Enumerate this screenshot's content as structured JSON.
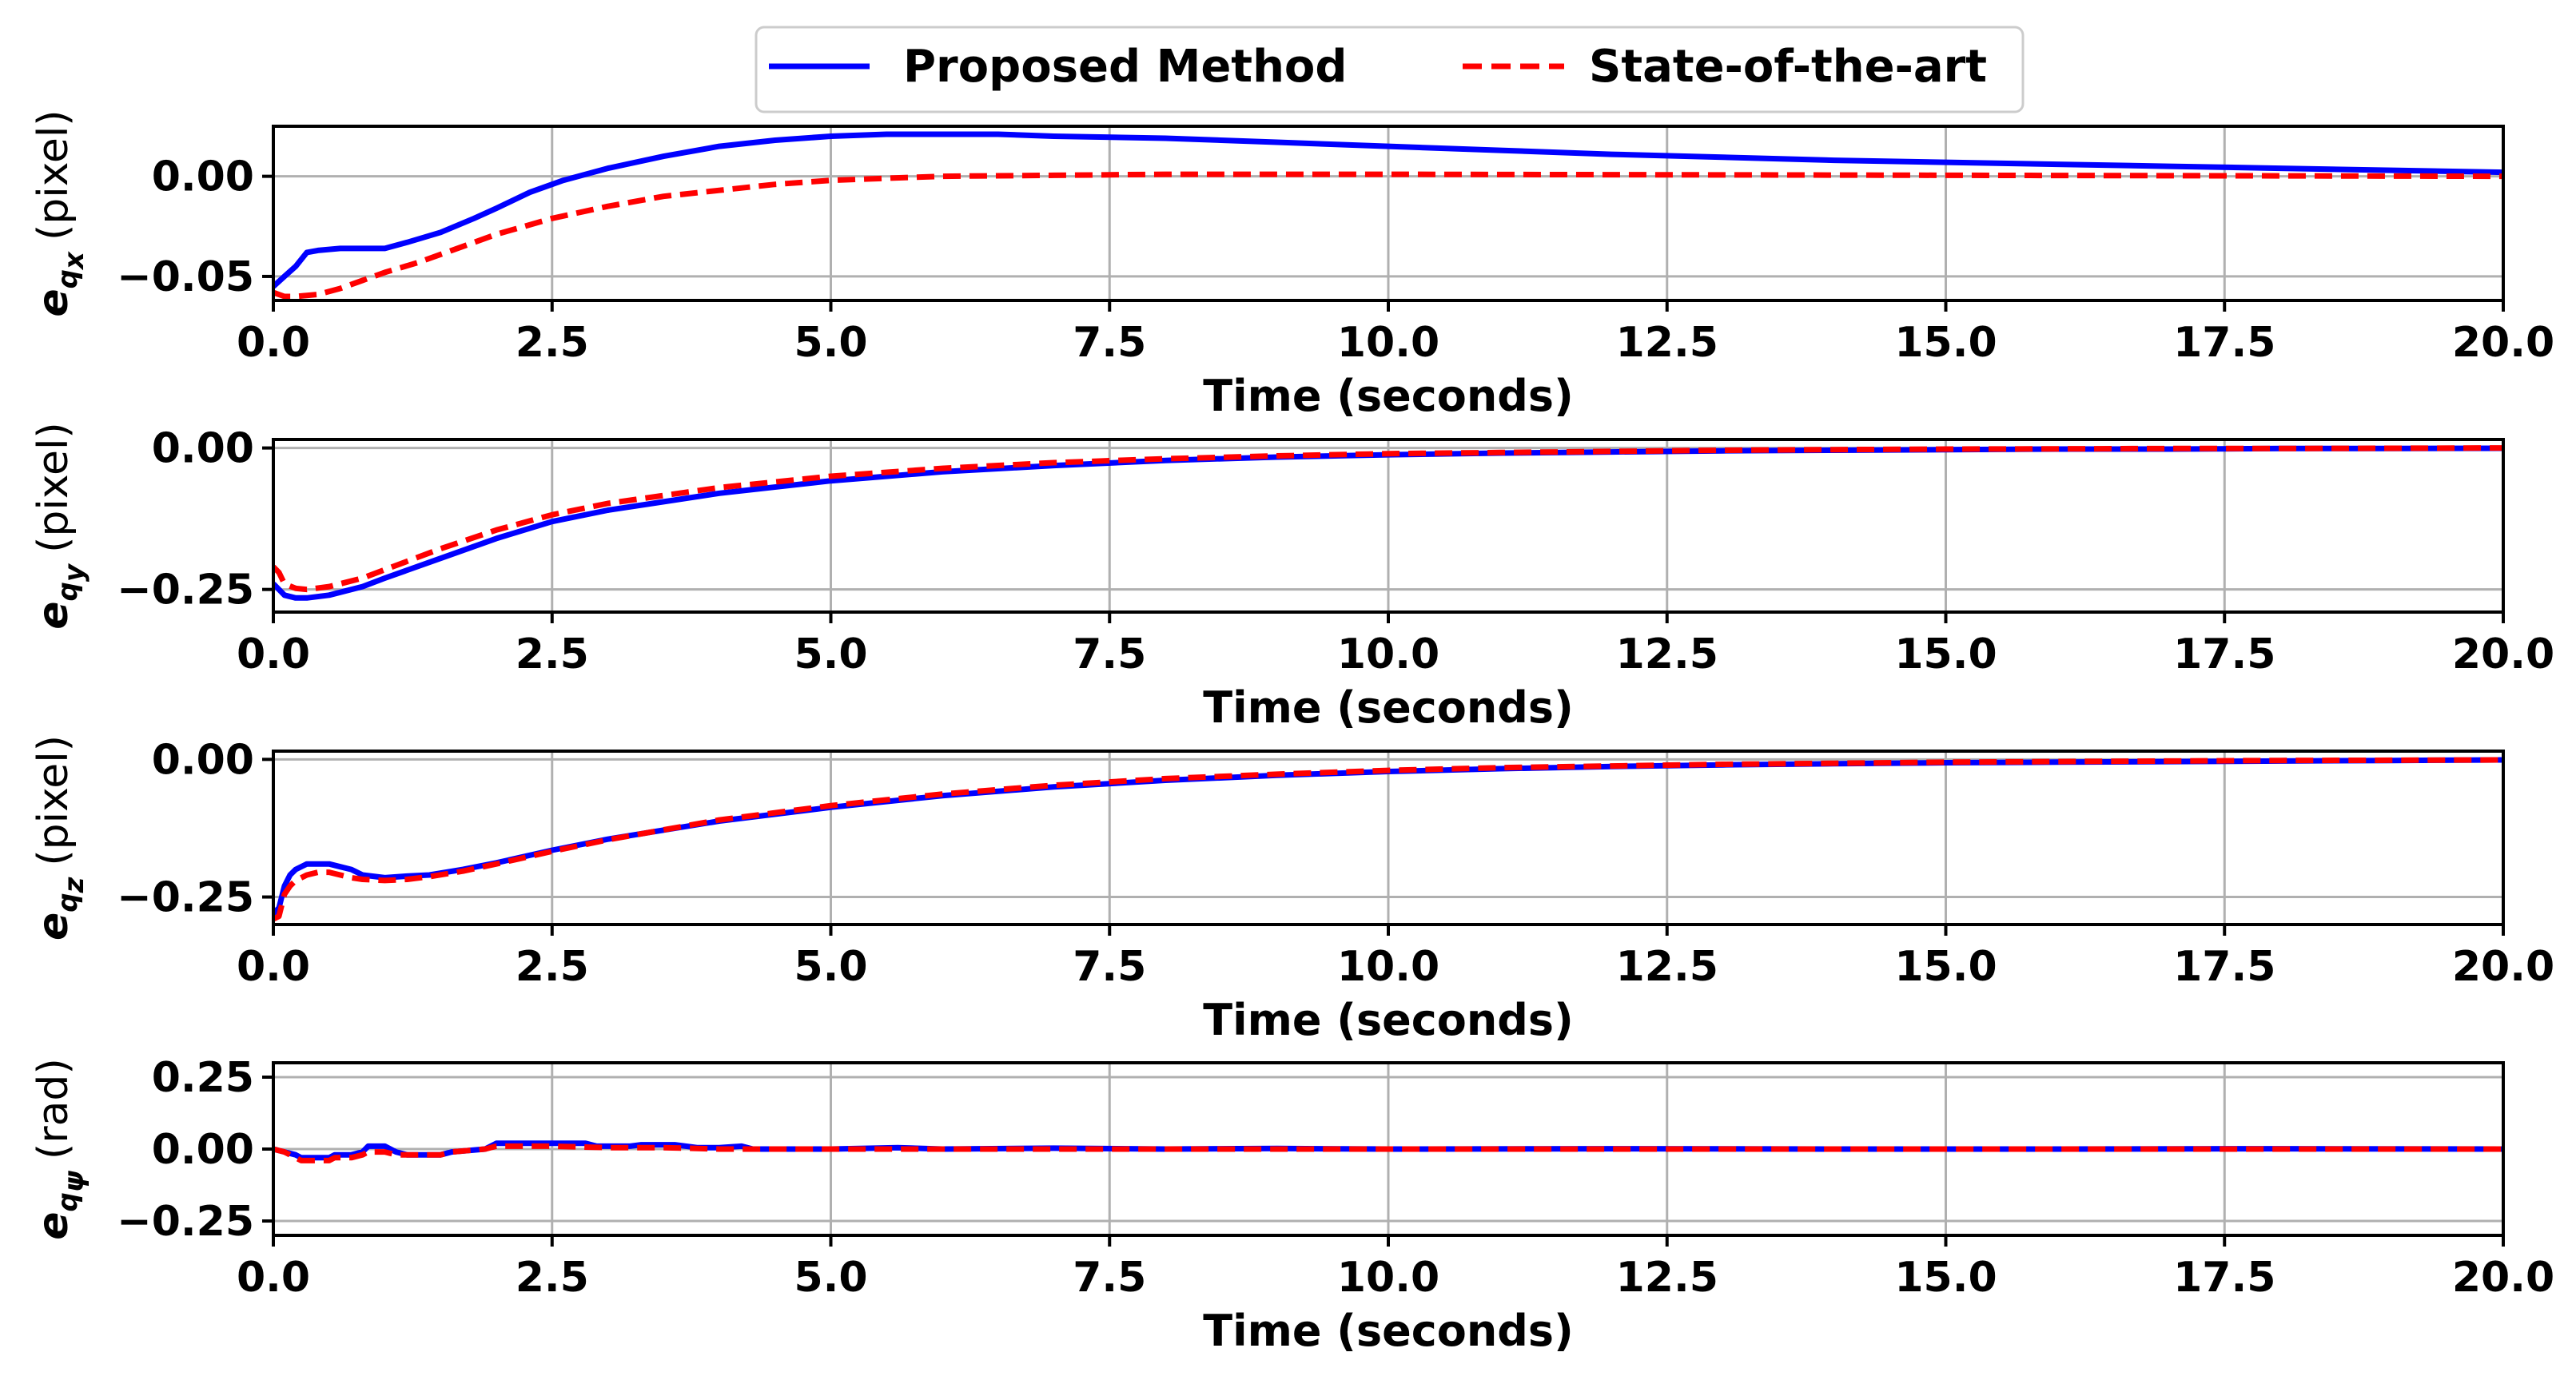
{
  "legend": {
    "items": [
      {
        "label": "Proposed Method",
        "color": "#0000ff",
        "style": "solid"
      },
      {
        "label": "State-of-the-art",
        "color": "#ff0000",
        "style": "dashed"
      }
    ]
  },
  "chart_data": [
    {
      "type": "line",
      "ylabel_symbol": "e",
      "ylabel_sub": "q",
      "ylabel_subsub": "x",
      "ylabel_unit": "(pixel)",
      "xlabel": "Time (seconds)",
      "xlim": [
        0,
        20
      ],
      "ylim": [
        -0.062,
        0.025
      ],
      "xticks": [
        0,
        2.5,
        5,
        7.5,
        10,
        12.5,
        15,
        17.5,
        20
      ],
      "xtick_labels": [
        "0.0",
        "2.5",
        "5.0",
        "7.5",
        "10.0",
        "12.5",
        "15.0",
        "17.5",
        "20.0"
      ],
      "yticks": [
        0.0,
        -0.05
      ],
      "ytick_labels": [
        "0.00",
        "−0.05"
      ],
      "series": [
        {
          "name": "Proposed Method",
          "color": "#0000ff",
          "dashed": false,
          "x": [
            0,
            0.1,
            0.2,
            0.3,
            0.4,
            0.6,
            0.8,
            1.0,
            1.2,
            1.5,
            1.8,
            2.0,
            2.3,
            2.6,
            3.0,
            3.5,
            4.0,
            4.5,
            5.0,
            5.5,
            6.0,
            6.5,
            7.0,
            8.0,
            9.0,
            10.0,
            11.0,
            12.0,
            13.0,
            14.0,
            15.0,
            16.0,
            17.0,
            18.0,
            19.0,
            20.0
          ],
          "y": [
            -0.055,
            -0.05,
            -0.045,
            -0.038,
            -0.037,
            -0.036,
            -0.036,
            -0.036,
            -0.033,
            -0.028,
            -0.021,
            -0.016,
            -0.008,
            -0.002,
            0.004,
            0.01,
            0.015,
            0.018,
            0.02,
            0.021,
            0.021,
            0.021,
            0.02,
            0.019,
            0.017,
            0.015,
            0.013,
            0.011,
            0.0095,
            0.008,
            0.007,
            0.006,
            0.005,
            0.004,
            0.003,
            0.002
          ]
        },
        {
          "name": "State-of-the-art",
          "color": "#ff0000",
          "dashed": true,
          "x": [
            0,
            0.1,
            0.2,
            0.4,
            0.6,
            0.8,
            1.0,
            1.3,
            1.6,
            2.0,
            2.5,
            3.0,
            3.5,
            4.0,
            4.5,
            5.0,
            5.5,
            6.0,
            7.0,
            8.0,
            9.0,
            10.0,
            12.0,
            14.0,
            16.0,
            18.0,
            20.0
          ],
          "y": [
            -0.058,
            -0.06,
            -0.06,
            -0.059,
            -0.056,
            -0.052,
            -0.048,
            -0.043,
            -0.037,
            -0.029,
            -0.021,
            -0.015,
            -0.01,
            -0.007,
            -0.004,
            -0.002,
            -0.001,
            0.0,
            0.0005,
            0.001,
            0.001,
            0.001,
            0.0008,
            0.0006,
            0.0004,
            0.0002,
            0.0
          ]
        }
      ]
    },
    {
      "type": "line",
      "ylabel_symbol": "e",
      "ylabel_sub": "q",
      "ylabel_subsub": "y",
      "ylabel_unit": "(pixel)",
      "xlabel": "Time (seconds)",
      "xlim": [
        0,
        20
      ],
      "ylim": [
        -0.29,
        0.015
      ],
      "xticks": [
        0,
        2.5,
        5,
        7.5,
        10,
        12.5,
        15,
        17.5,
        20
      ],
      "xtick_labels": [
        "0.0",
        "2.5",
        "5.0",
        "7.5",
        "10.0",
        "12.5",
        "15.0",
        "17.5",
        "20.0"
      ],
      "yticks": [
        0.0,
        -0.25
      ],
      "ytick_labels": [
        "0.00",
        "−0.25"
      ],
      "series": [
        {
          "name": "Proposed Method",
          "color": "#0000ff",
          "dashed": false,
          "x": [
            0,
            0.05,
            0.1,
            0.2,
            0.3,
            0.5,
            0.8,
            1.0,
            1.5,
            2.0,
            2.5,
            3.0,
            4.0,
            5.0,
            6.0,
            7.0,
            8.0,
            9.0,
            10.0,
            11.0,
            12.0,
            13.0,
            14.0,
            15.0,
            16.0,
            17.0,
            18.0,
            19.0,
            20.0
          ],
          "y": [
            -0.24,
            -0.25,
            -0.26,
            -0.265,
            -0.265,
            -0.26,
            -0.245,
            -0.23,
            -0.195,
            -0.16,
            -0.13,
            -0.11,
            -0.08,
            -0.058,
            -0.042,
            -0.031,
            -0.022,
            -0.016,
            -0.012,
            -0.009,
            -0.007,
            -0.005,
            -0.004,
            -0.003,
            -0.002,
            -0.002,
            -0.001,
            -0.001,
            -0.0005
          ]
        },
        {
          "name": "State-of-the-art",
          "color": "#ff0000",
          "dashed": true,
          "x": [
            0,
            0.05,
            0.1,
            0.2,
            0.3,
            0.5,
            0.8,
            1.0,
            1.5,
            2.0,
            2.5,
            3.0,
            4.0,
            5.0,
            6.0,
            7.0,
            8.0,
            9.0,
            10.0,
            11.0,
            12.0,
            13.0,
            14.0,
            15.0,
            16.0,
            17.0,
            18.0,
            19.0,
            20.0
          ],
          "y": [
            -0.21,
            -0.22,
            -0.24,
            -0.248,
            -0.25,
            -0.245,
            -0.23,
            -0.215,
            -0.178,
            -0.145,
            -0.118,
            -0.098,
            -0.07,
            -0.05,
            -0.036,
            -0.026,
            -0.019,
            -0.014,
            -0.01,
            -0.008,
            -0.006,
            -0.004,
            -0.003,
            -0.002,
            -0.0015,
            -0.001,
            -0.001,
            -0.0005,
            0.0
          ]
        }
      ]
    },
    {
      "type": "line",
      "ylabel_symbol": "e",
      "ylabel_sub": "q",
      "ylabel_subsub": "z",
      "ylabel_unit": "(pixel)",
      "xlabel": "Time (seconds)",
      "xlim": [
        0,
        20
      ],
      "ylim": [
        -0.3,
        0.015
      ],
      "xticks": [
        0,
        2.5,
        5,
        7.5,
        10,
        12.5,
        15,
        17.5,
        20
      ],
      "xtick_labels": [
        "0.0",
        "2.5",
        "5.0",
        "7.5",
        "10.0",
        "12.5",
        "15.0",
        "17.5",
        "20.0"
      ],
      "yticks": [
        0.0,
        -0.25
      ],
      "ytick_labels": [
        "0.00",
        "−0.25"
      ],
      "series": [
        {
          "name": "Proposed Method",
          "color": "#0000ff",
          "dashed": false,
          "x": [
            0,
            0.05,
            0.1,
            0.15,
            0.2,
            0.3,
            0.4,
            0.5,
            0.6,
            0.7,
            0.8,
            1.0,
            1.2,
            1.4,
            1.7,
            2.0,
            2.5,
            3.0,
            4.0,
            5.0,
            6.0,
            7.0,
            8.0,
            9.0,
            10.0,
            11.0,
            12.0,
            13.0,
            14.0,
            15.0,
            16.0,
            17.0,
            18.0,
            19.0,
            20.0
          ],
          "y": [
            -0.28,
            -0.27,
            -0.23,
            -0.21,
            -0.2,
            -0.19,
            -0.19,
            -0.19,
            -0.195,
            -0.2,
            -0.21,
            -0.215,
            -0.212,
            -0.21,
            -0.2,
            -0.188,
            -0.165,
            -0.145,
            -0.112,
            -0.087,
            -0.066,
            -0.05,
            -0.038,
            -0.029,
            -0.022,
            -0.017,
            -0.013,
            -0.01,
            -0.008,
            -0.006,
            -0.005,
            -0.004,
            -0.003,
            -0.002,
            -0.001
          ]
        },
        {
          "name": "State-of-the-art",
          "color": "#ff0000",
          "dashed": true,
          "x": [
            0,
            0.05,
            0.1,
            0.15,
            0.2,
            0.3,
            0.4,
            0.5,
            0.6,
            0.7,
            0.8,
            1.0,
            1.2,
            1.4,
            1.7,
            2.0,
            2.5,
            3.0,
            4.0,
            5.0,
            6.0,
            7.0,
            8.0,
            9.0,
            10.0,
            11.0,
            12.0,
            13.0,
            14.0,
            15.0,
            16.0,
            17.0,
            18.0,
            19.0,
            20.0
          ],
          "y": [
            -0.29,
            -0.285,
            -0.245,
            -0.23,
            -0.22,
            -0.21,
            -0.205,
            -0.205,
            -0.21,
            -0.215,
            -0.218,
            -0.22,
            -0.218,
            -0.213,
            -0.203,
            -0.19,
            -0.167,
            -0.146,
            -0.11,
            -0.084,
            -0.063,
            -0.047,
            -0.035,
            -0.027,
            -0.02,
            -0.015,
            -0.012,
            -0.009,
            -0.007,
            -0.005,
            -0.004,
            -0.003,
            -0.002,
            -0.0015,
            -0.001
          ]
        }
      ]
    },
    {
      "type": "line",
      "ylabel_symbol": "e",
      "ylabel_sub": "q",
      "ylabel_subsub": "ψ",
      "ylabel_unit": "(rad)",
      "xlabel": "Time (seconds)",
      "xlim": [
        0,
        20
      ],
      "ylim": [
        -0.3,
        0.3
      ],
      "xticks": [
        0,
        2.5,
        5,
        7.5,
        10,
        12.5,
        15,
        17.5,
        20
      ],
      "xtick_labels": [
        "0.0",
        "2.5",
        "5.0",
        "7.5",
        "10.0",
        "12.5",
        "15.0",
        "17.5",
        "20.0"
      ],
      "yticks": [
        0.25,
        0.0,
        -0.25
      ],
      "ytick_labels": [
        "0.25",
        "0.00",
        "−0.25"
      ],
      "series": [
        {
          "name": "Proposed Method",
          "color": "#0000ff",
          "dashed": false,
          "x": [
            0,
            0.1,
            0.2,
            0.25,
            0.4,
            0.5,
            0.55,
            0.7,
            0.8,
            0.85,
            1.0,
            1.1,
            1.2,
            1.5,
            1.6,
            1.9,
            2.0,
            2.1,
            2.3,
            2.5,
            2.8,
            2.9,
            3.2,
            3.3,
            3.6,
            3.8,
            4.0,
            4.2,
            4.3,
            5.0,
            5.6,
            6.0,
            7.0,
            8.0,
            9.0,
            10.0,
            12.0,
            14.0,
            16.0,
            18.0,
            20.0
          ],
          "y": [
            0.0,
            -0.01,
            -0.02,
            -0.03,
            -0.03,
            -0.03,
            -0.02,
            -0.02,
            -0.01,
            0.01,
            0.01,
            -0.01,
            -0.02,
            -0.02,
            -0.01,
            0.0,
            0.02,
            0.02,
            0.02,
            0.02,
            0.02,
            0.01,
            0.01,
            0.015,
            0.015,
            0.005,
            0.005,
            0.01,
            0.0,
            0.0,
            0.005,
            0.0,
            0.003,
            0.0,
            0.002,
            0.0,
            0.001,
            0.0,
            0.0,
            0.001,
            0.0
          ]
        },
        {
          "name": "State-of-the-art",
          "color": "#ff0000",
          "dashed": true,
          "x": [
            0,
            0.1,
            0.2,
            0.25,
            0.4,
            0.5,
            0.55,
            0.7,
            0.8,
            0.85,
            1.0,
            1.1,
            1.2,
            1.5,
            1.6,
            1.9,
            2.0,
            2.5,
            3.0,
            3.5,
            4.0,
            5.0,
            6.0,
            7.0,
            8.0,
            10.0,
            12.0,
            14.0,
            16.0,
            18.0,
            20.0
          ],
          "y": [
            0.0,
            -0.01,
            -0.03,
            -0.04,
            -0.04,
            -0.04,
            -0.03,
            -0.03,
            -0.02,
            -0.01,
            -0.01,
            -0.02,
            -0.02,
            -0.02,
            -0.01,
            0.0,
            0.01,
            0.01,
            0.005,
            0.005,
            0.0,
            0.0,
            0.0,
            0.0,
            0.0,
            0.0,
            0.0,
            0.0,
            0.0,
            0.0,
            0.0
          ]
        }
      ]
    }
  ]
}
